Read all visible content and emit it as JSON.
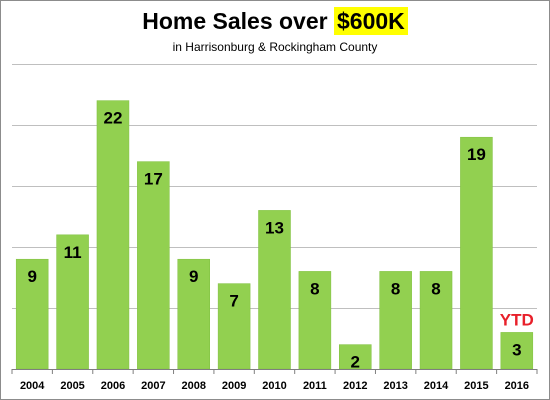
{
  "colors": {
    "bar": "#92d050",
    "bar_edge": "#7fbf3f",
    "grid": "#bfbfbf",
    "axis": "#7f7f7f",
    "highlight": "#ffff00",
    "annotation": "#e8202a"
  },
  "chart_data": {
    "type": "bar",
    "title": "Home Sales over",
    "title_highlight": "$600K",
    "subtitle": "in Harrisonburg & Rockingham County",
    "categories": [
      "2004",
      "2005",
      "2006",
      "2007",
      "2008",
      "2009",
      "2010",
      "2011",
      "2012",
      "2013",
      "2014",
      "2015",
      "2016"
    ],
    "values": [
      9,
      11,
      22,
      17,
      9,
      7,
      13,
      8,
      2,
      8,
      8,
      19,
      3
    ],
    "xlabel": "",
    "ylabel": "",
    "ylim": [
      0,
      25
    ],
    "y_gridlines": [
      5,
      10,
      15,
      20,
      25
    ],
    "y_tick_labels_shown": false,
    "grid": true,
    "data_labels": true,
    "annotation": {
      "text": "YTD",
      "category": "2016"
    }
  }
}
